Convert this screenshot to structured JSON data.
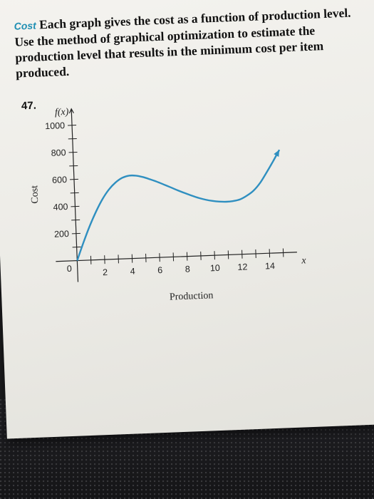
{
  "problem": {
    "number": "47.",
    "lead": "Cost",
    "text": "Each graph gives the cost as a function of production level. Use the method of graphical optimization to estimate the production level that results in the minimum cost per item produced."
  },
  "chart_data": {
    "type": "line",
    "function_label": "f(x)",
    "x_var_label": "x",
    "xlabel": "Production",
    "ylabel": "Cost",
    "origin_label": "0",
    "xlim": [
      0,
      16
    ],
    "ylim": [
      0,
      1100
    ],
    "x_ticks": [
      2,
      4,
      6,
      8,
      10,
      12,
      14
    ],
    "y_ticks": [
      200,
      400,
      600,
      800,
      1000
    ],
    "series": [
      {
        "x": [
          0,
          0.5,
          1,
          1.5,
          2,
          2.5,
          3,
          3.5,
          4,
          4.5,
          5,
          5.5,
          6,
          6.5,
          7,
          7.5,
          8,
          8.5,
          9,
          9.5,
          10,
          10.5,
          11,
          11.5,
          12,
          12.5,
          13,
          13.5,
          14,
          14.5,
          15
        ],
        "y": [
          0,
          130,
          250,
          355,
          445,
          515,
          565,
          598,
          612,
          610,
          598,
          580,
          560,
          537,
          514,
          490,
          468,
          447,
          428,
          413,
          402,
          395,
          392,
          395,
          405,
          430,
          465,
          520,
          595,
          675,
          760
        ]
      }
    ],
    "line_color": "#2f8fc0"
  }
}
